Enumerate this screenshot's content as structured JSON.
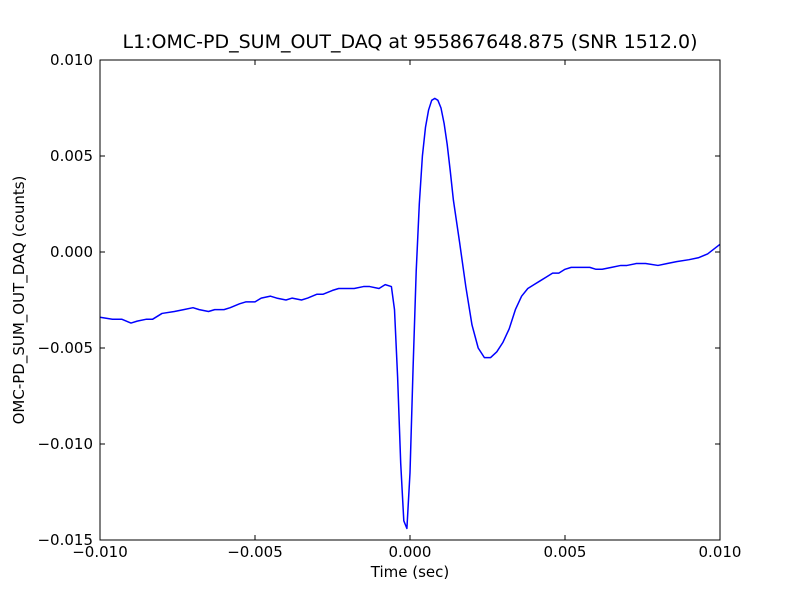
{
  "chart_data": {
    "type": "line",
    "title": "L1:OMC-PD_SUM_OUT_DAQ at 955867648.875 (SNR 1512.0)",
    "xlabel": "Time (sec)",
    "ylabel": "OMC-PD_SUM_OUT_DAQ (counts)",
    "xlim": [
      -0.01,
      0.01
    ],
    "ylim": [
      -0.015,
      0.01
    ],
    "grid": false,
    "x_ticks": [
      -0.01,
      -0.005,
      0.0,
      0.005,
      0.01
    ],
    "x_tick_labels": [
      "−0.010",
      "−0.005",
      "0.000",
      "0.005",
      "0.010"
    ],
    "y_ticks": [
      -0.015,
      -0.01,
      -0.005,
      0.0,
      0.005,
      0.01
    ],
    "y_tick_labels": [
      "−0.015",
      "−0.010",
      "−0.005",
      "0.000",
      "0.005",
      "0.010"
    ],
    "line_color": "#0000ff",
    "series": [
      {
        "x": [
          -0.01,
          -0.0096,
          -0.0093,
          -0.009,
          -0.0088,
          -0.0085,
          -0.0083,
          -0.008,
          -0.0076,
          -0.0073,
          -0.007,
          -0.0068,
          -0.0065,
          -0.0063,
          -0.006,
          -0.0058,
          -0.0055,
          -0.0053,
          -0.005,
          -0.0048,
          -0.0045,
          -0.0043,
          -0.004,
          -0.0038,
          -0.0035,
          -0.0033,
          -0.003,
          -0.0028,
          -0.0025,
          -0.0023,
          -0.002,
          -0.0018,
          -0.0015,
          -0.0013,
          -0.001,
          -0.0008,
          -0.0006,
          -0.0005,
          -0.0004,
          -0.0003,
          -0.0002,
          -0.0001,
          0.0,
          0.0001,
          0.0002,
          0.0003,
          0.0004,
          0.0005,
          0.0006,
          0.0007,
          0.0008,
          0.0009,
          0.001,
          0.0011,
          0.0012,
          0.0013,
          0.0014,
          0.0016,
          0.0018,
          0.002,
          0.0022,
          0.0024,
          0.0026,
          0.0028,
          0.003,
          0.0032,
          0.0034,
          0.0036,
          0.0038,
          0.004,
          0.0042,
          0.0044,
          0.0046,
          0.0048,
          0.005,
          0.0052,
          0.0055,
          0.0058,
          0.006,
          0.0062,
          0.0065,
          0.0068,
          0.007,
          0.0073,
          0.0076,
          0.008,
          0.0083,
          0.0086,
          0.009,
          0.0093,
          0.0096,
          0.01
        ],
        "y": [
          -0.0034,
          -0.0035,
          -0.0035,
          -0.0037,
          -0.0036,
          -0.0035,
          -0.0035,
          -0.0032,
          -0.0031,
          -0.003,
          -0.0029,
          -0.003,
          -0.0031,
          -0.003,
          -0.003,
          -0.0029,
          -0.0027,
          -0.0026,
          -0.0026,
          -0.0024,
          -0.0023,
          -0.0024,
          -0.0025,
          -0.0024,
          -0.0025,
          -0.0024,
          -0.0022,
          -0.0022,
          -0.002,
          -0.0019,
          -0.0019,
          -0.0019,
          -0.0018,
          -0.0018,
          -0.0019,
          -0.0017,
          -0.0018,
          -0.003,
          -0.0065,
          -0.011,
          -0.014,
          -0.0144,
          -0.0115,
          -0.006,
          -0.001,
          0.0025,
          0.005,
          0.0065,
          0.0074,
          0.0079,
          0.008,
          0.0079,
          0.0075,
          0.0067,
          0.0056,
          0.0042,
          0.0027,
          0.0005,
          -0.0018,
          -0.0038,
          -0.005,
          -0.0055,
          -0.0055,
          -0.0052,
          -0.0047,
          -0.004,
          -0.003,
          -0.0023,
          -0.0019,
          -0.0017,
          -0.0015,
          -0.0013,
          -0.0011,
          -0.0011,
          -0.0009,
          -0.0008,
          -0.0008,
          -0.0008,
          -0.0009,
          -0.0009,
          -0.0008,
          -0.0007,
          -0.0007,
          -0.0006,
          -0.0006,
          -0.0007,
          -0.0006,
          -0.0005,
          -0.0004,
          -0.0003,
          -0.0001,
          0.0004
        ]
      }
    ]
  }
}
